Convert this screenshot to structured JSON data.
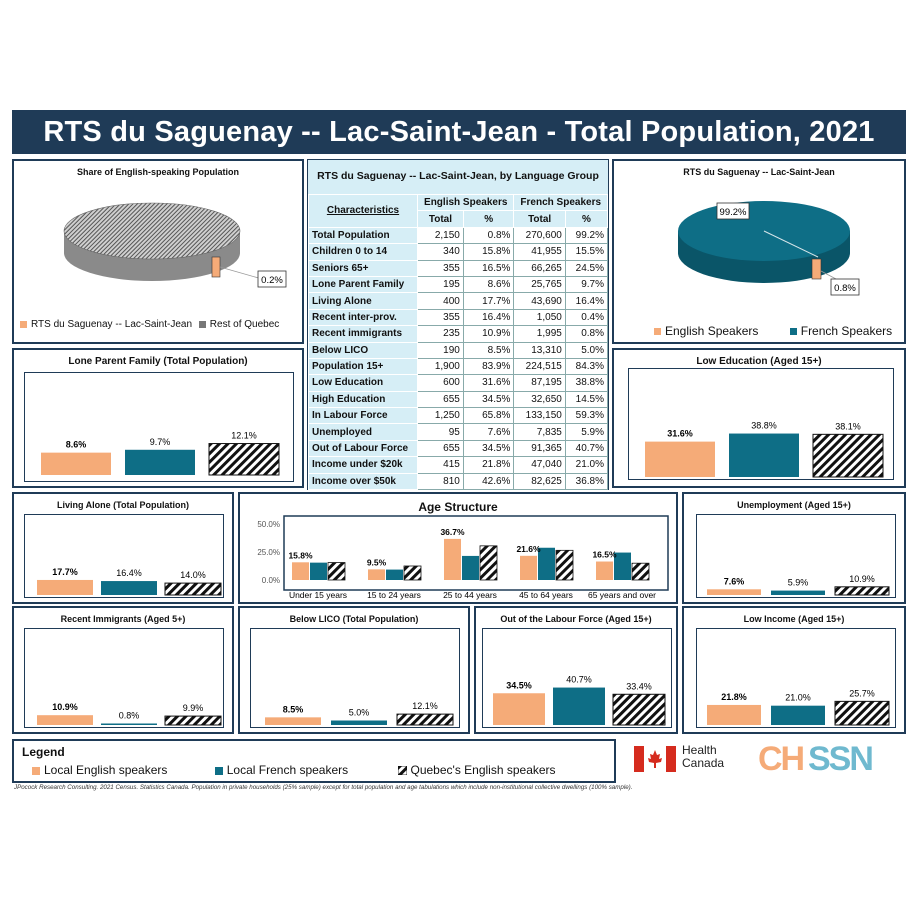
{
  "title": "RTS du Saguenay -- Lac-Saint-Jean - Total Population, 2021",
  "colors": {
    "english": "#f5ab78",
    "french": "#0e6e86",
    "quebec": "hatch",
    "navy": "#1f3b57"
  },
  "share_panel": {
    "title": "Share of English-speaking Population",
    "callout": "0.2%",
    "legend": [
      "RTS du Saguenay -- Lac-Saint-Jean",
      "Rest of Quebec"
    ]
  },
  "lang_panel": {
    "title": "RTS du Saguenay -- Lac-Saint-Jean",
    "callout_big": "99.2%",
    "callout_small": "0.8%",
    "legend": [
      "English Speakers",
      "French Speakers"
    ]
  },
  "table": {
    "title": "RTS du Saguenay -- Lac-Saint-Jean, by Language Group",
    "characteristics_label": "Characteristics",
    "group_english": "English Speakers",
    "group_french": "French Speakers",
    "col_total": "Total",
    "col_pct": "%",
    "rows": [
      {
        "label": "Total Population",
        "en_total": "2,150",
        "en_pct": "0.8%",
        "fr_total": "270,600",
        "fr_pct": "99.2%"
      },
      {
        "label": "Children 0 to 14",
        "en_total": "340",
        "en_pct": "15.8%",
        "fr_total": "41,955",
        "fr_pct": "15.5%"
      },
      {
        "label": "Seniors 65+",
        "en_total": "355",
        "en_pct": "16.5%",
        "fr_total": "66,265",
        "fr_pct": "24.5%"
      },
      {
        "label": "Lone Parent Family",
        "en_total": "195",
        "en_pct": "8.6%",
        "fr_total": "25,765",
        "fr_pct": "9.7%"
      },
      {
        "label": "Living Alone",
        "en_total": "400",
        "en_pct": "17.7%",
        "fr_total": "43,690",
        "fr_pct": "16.4%"
      },
      {
        "label": "Recent inter-prov.",
        "en_total": "355",
        "en_pct": "16.4%",
        "fr_total": "1,050",
        "fr_pct": "0.4%"
      },
      {
        "label": "Recent immigrants",
        "en_total": "235",
        "en_pct": "10.9%",
        "fr_total": "1,995",
        "fr_pct": "0.8%"
      },
      {
        "label": "Below LICO",
        "en_total": "190",
        "en_pct": "8.5%",
        "fr_total": "13,310",
        "fr_pct": "5.0%"
      },
      {
        "label": "Population 15+",
        "en_total": "1,900",
        "en_pct": "83.9%",
        "fr_total": "224,515",
        "fr_pct": "84.3%"
      },
      {
        "label": "Low Education",
        "en_total": "600",
        "en_pct": "31.6%",
        "fr_total": "87,195",
        "fr_pct": "38.8%"
      },
      {
        "label": "High Education",
        "en_total": "655",
        "en_pct": "34.5%",
        "fr_total": "32,650",
        "fr_pct": "14.5%"
      },
      {
        "label": "In Labour Force",
        "en_total": "1,250",
        "en_pct": "65.8%",
        "fr_total": "133,150",
        "fr_pct": "59.3%"
      },
      {
        "label": "Unemployed",
        "en_total": "95",
        "en_pct": "7.6%",
        "fr_total": "7,835",
        "fr_pct": "5.9%"
      },
      {
        "label": "Out of Labour Force",
        "en_total": "655",
        "en_pct": "34.5%",
        "fr_total": "91,365",
        "fr_pct": "40.7%"
      },
      {
        "label": "Income under $20k",
        "en_total": "415",
        "en_pct": "21.8%",
        "fr_total": "47,040",
        "fr_pct": "21.0%"
      },
      {
        "label": "Income over $50k",
        "en_total": "810",
        "en_pct": "42.6%",
        "fr_total": "82,625",
        "fr_pct": "36.8%"
      }
    ]
  },
  "chart_data": [
    {
      "id": "lone",
      "type": "bar",
      "title": "Lone Parent Family (Total Population)",
      "values": [
        8.6,
        9.7,
        12.1
      ],
      "labels": [
        "8.6%",
        "9.7%",
        "12.1%"
      ],
      "ylim": [
        0,
        40
      ]
    },
    {
      "id": "lowedu",
      "type": "bar",
      "title": "Low Education (Aged 15+)",
      "values": [
        31.6,
        38.8,
        38.1
      ],
      "labels": [
        "31.6%",
        "38.8%",
        "38.1%"
      ],
      "ylim": [
        0,
        50
      ]
    },
    {
      "id": "alone",
      "type": "bar",
      "title": "Living Alone (Total Population)",
      "values": [
        17.7,
        16.4,
        14.0
      ],
      "labels": [
        "17.7%",
        "16.4%",
        "14.0%"
      ],
      "ylim": [
        0,
        60
      ]
    },
    {
      "id": "unemp",
      "type": "bar",
      "title": "Unemployment (Aged 15+)",
      "values": [
        7.6,
        5.9,
        10.9
      ],
      "labels": [
        "7.6%",
        "5.9%",
        "10.9%"
      ],
      "ylim": [
        0,
        50
      ]
    },
    {
      "id": "immig",
      "type": "bar",
      "title": "Recent Immigrants (Aged 5+)",
      "values": [
        10.9,
        0.8,
        9.9
      ],
      "labels": [
        "10.9%",
        "0.8%",
        "9.9%"
      ],
      "ylim": [
        0,
        50
      ]
    },
    {
      "id": "lico",
      "type": "bar",
      "title": "Below LICO (Total Population)",
      "values": [
        8.5,
        5.0,
        12.1
      ],
      "labels": [
        "8.5%",
        "5.0%",
        "12.1%"
      ],
      "ylim": [
        0,
        50
      ]
    },
    {
      "id": "outlf",
      "type": "bar",
      "title": "Out of the Labour Force (Aged 15+)",
      "values": [
        34.5,
        40.7,
        33.4
      ],
      "labels": [
        "34.5%",
        "40.7%",
        "33.4%"
      ],
      "ylim": [
        0,
        60
      ]
    },
    {
      "id": "lowinc",
      "type": "bar",
      "title": "Low Income (Aged 15+)",
      "values": [
        21.8,
        21.0,
        25.7
      ],
      "labels": [
        "21.8%",
        "21.0%",
        "25.7%"
      ],
      "ylim": [
        0,
        50
      ]
    },
    {
      "id": "age",
      "type": "bar",
      "title": "Age Structure",
      "categories": [
        "Under 15 years",
        "15 to 24 years",
        "25 to 44 years",
        "45 to 64 years",
        "65 years and over"
      ],
      "series": [
        {
          "name": "Local English speakers",
          "values": [
            15.8,
            9.5,
            36.7,
            21.6,
            16.5
          ]
        },
        {
          "name": "Local French speakers",
          "values": [
            15.5,
            9.3,
            21.5,
            28.8,
            24.5
          ]
        },
        {
          "name": "Quebec's English speakers",
          "values": [
            15.6,
            12.5,
            30.5,
            26.5,
            15.0
          ]
        }
      ],
      "ytick_labels": [
        "0.0%",
        "25.0%",
        "50.0%"
      ],
      "ylim": [
        0,
        50
      ],
      "labels": [
        "15.8%",
        "9.5%",
        "36.7%",
        "21.6%",
        "16.5%"
      ]
    },
    {
      "id": "share",
      "type": "pie",
      "title": "Share of English-speaking Population",
      "slices": [
        {
          "name": "RTS du Saguenay -- Lac-Saint-Jean",
          "value": 0.2
        },
        {
          "name": "Rest of Quebec",
          "value": 99.8
        }
      ]
    },
    {
      "id": "lang",
      "type": "pie",
      "title": "RTS du Saguenay -- Lac-Saint-Jean",
      "slices": [
        {
          "name": "English Speakers",
          "value": 0.8
        },
        {
          "name": "French Speakers",
          "value": 99.2
        }
      ]
    }
  ],
  "legend": {
    "title": "Legend",
    "items": [
      "Local English speakers",
      "Local French speakers",
      "Quebec's English speakers"
    ]
  },
  "logos": {
    "health": "Health Canada",
    "health_line1": "Health",
    "health_line2": "Canada",
    "chssn": "CHSSN"
  },
  "footnote": "JPocock Research Consulting. 2021 Census. Statistics Canada. Population in private households (25% sample) except for total population and age tabulations which include non-institutional collective dwellings (100% sample)."
}
